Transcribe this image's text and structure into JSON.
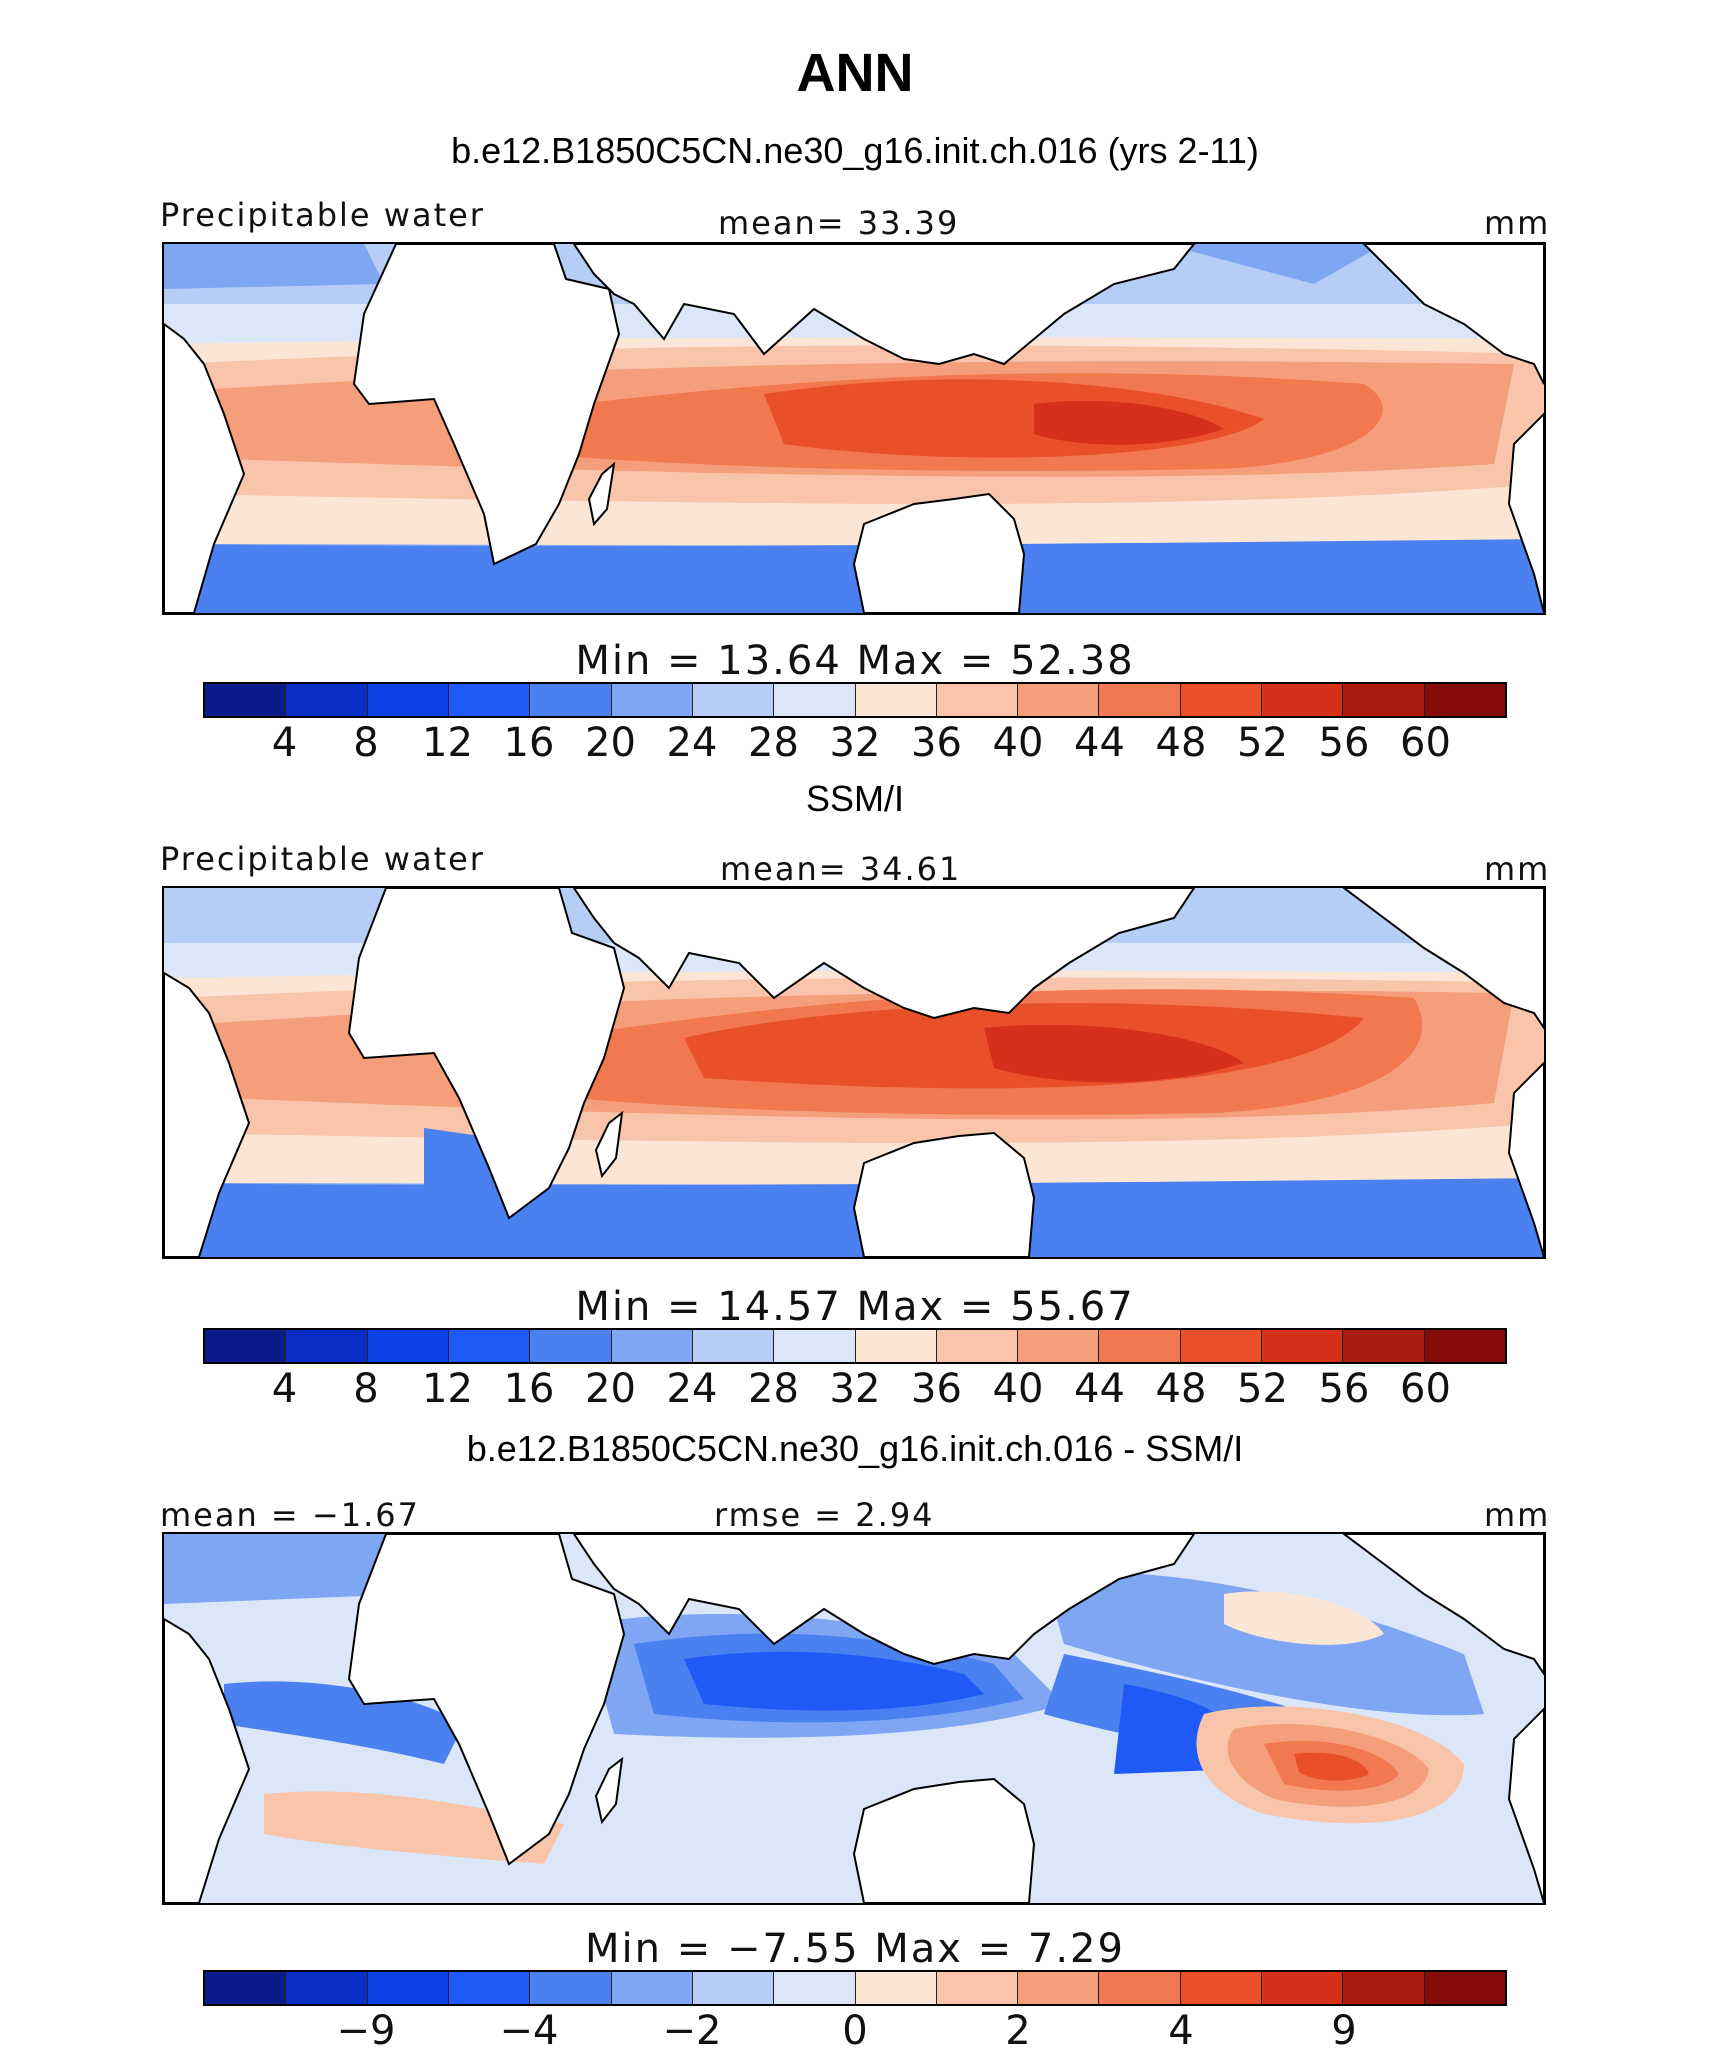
{
  "title": "ANN",
  "palette": [
    "#0a1c8c",
    "#0a2ec4",
    "#0b43e6",
    "#1f5af6",
    "#4a80f0",
    "#7ea6f2",
    "#b6cdf6",
    "#dbe7f8",
    "#fbe6d6",
    "#f8c5ab",
    "#f59e7c",
    "#f1784f",
    "#e9502a",
    "#d4301a",
    "#aa1b10",
    "#850c08"
  ],
  "land_color": "#ffffff",
  "panels": [
    {
      "title": "b.e12.B1850C5CN.ne30_g16.init.ch.016 (yrs 2-11)",
      "left_label": "Precipitable water",
      "center_label": "mean=   33.39",
      "right_label": "mm",
      "stats": "Min  =    13.64  Max  =    52.38",
      "ticks": [
        "4",
        "8",
        "12",
        "16",
        "20",
        "24",
        "28",
        "32",
        "36",
        "40",
        "44",
        "48",
        "52",
        "56",
        "60"
      ]
    },
    {
      "title": "SSM/I",
      "left_label": "Precipitable water",
      "center_label": "mean=   34.61",
      "right_label": "mm",
      "stats": "Min  =    14.57  Max  =    55.67",
      "ticks": [
        "4",
        "8",
        "12",
        "16",
        "20",
        "24",
        "28",
        "32",
        "36",
        "40",
        "44",
        "48",
        "52",
        "56",
        "60"
      ]
    },
    {
      "title": "b.e12.B1850C5CN.ne30_g16.init.ch.016 - SSM/I",
      "left_label": "mean  =   −1.67",
      "center_label": "rmse  =     2.94",
      "right_label": "mm",
      "stats": "Min  =   −7.55  Max  =     7.29",
      "ticks": [
        "−9",
        "−4",
        "−2",
        "0",
        "2",
        "4",
        "9"
      ]
    }
  ]
}
